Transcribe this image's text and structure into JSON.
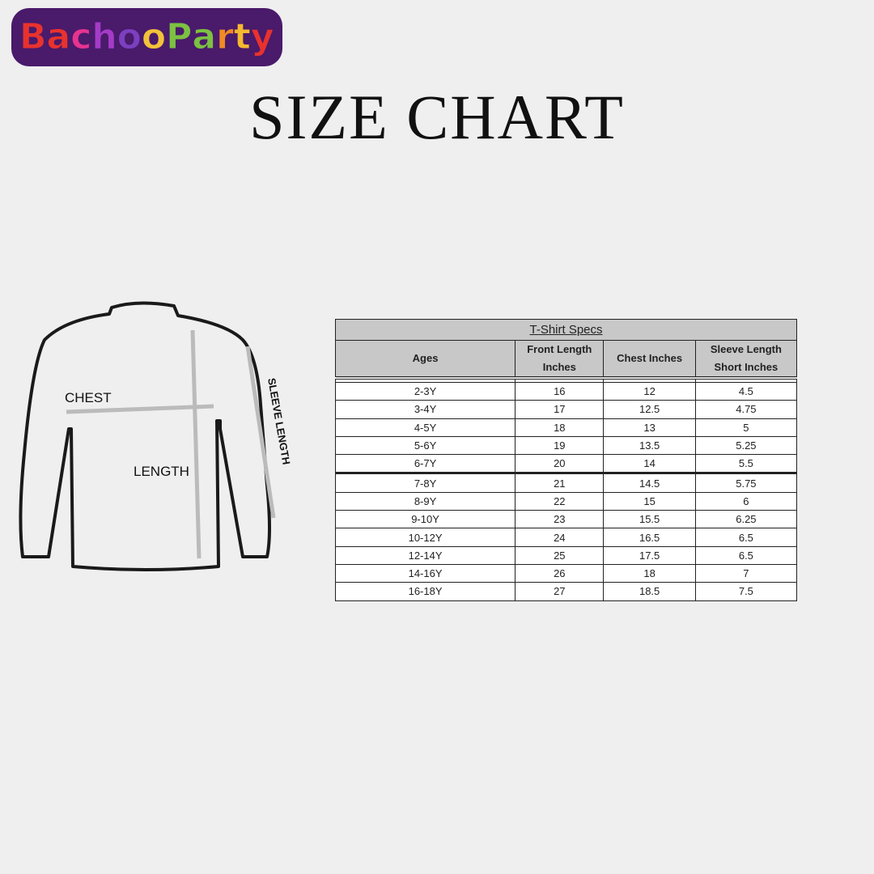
{
  "logo": {
    "text": "BachooParty",
    "letters": [
      {
        "c": "B",
        "color": "#e8322d"
      },
      {
        "c": "a",
        "color": "#e8322d"
      },
      {
        "c": "c",
        "color": "#e6338f"
      },
      {
        "c": "h",
        "color": "#a43bc8"
      },
      {
        "c": "o",
        "color": "#7b3fc0"
      },
      {
        "c": "o",
        "color": "#f2c23a"
      },
      {
        "c": "P",
        "color": "#7cc142"
      },
      {
        "c": "a",
        "color": "#7cc142"
      },
      {
        "c": "r",
        "color": "#f08a24"
      },
      {
        "c": "t",
        "color": "#f5b82e"
      },
      {
        "c": "y",
        "color": "#e8322d"
      }
    ]
  },
  "title": "SIZE CHART",
  "diagram": {
    "chest": "CHEST",
    "length": "LENGTH",
    "sleeve": "SLEEVE LENGTH"
  },
  "table": {
    "caption": "T-Shirt Specs",
    "headers": [
      [
        "Ages"
      ],
      [
        "Front Length",
        "Inches"
      ],
      [
        "Chest Inches"
      ],
      [
        "Sleeve Length",
        "Short Inches"
      ]
    ],
    "rows": [
      [
        "2-3Y",
        "16",
        "12",
        "4.5"
      ],
      [
        "3-4Y",
        "17",
        "12.5",
        "4.75"
      ],
      [
        "4-5Y",
        "18",
        "13",
        "5"
      ],
      [
        "5-6Y",
        "19",
        "13.5",
        "5.25"
      ],
      [
        "6-7Y",
        "20",
        "14",
        "5.5"
      ],
      [
        "7-8Y",
        "21",
        "14.5",
        "5.75"
      ],
      [
        "8-9Y",
        "22",
        "15",
        "6"
      ],
      [
        "9-10Y",
        "23",
        "15.5",
        "6.25"
      ],
      [
        "10-12Y",
        "24",
        "16.5",
        "6.5"
      ],
      [
        "12-14Y",
        "25",
        "17.5",
        "6.5"
      ],
      [
        "14-16Y",
        "26",
        "18",
        "7"
      ],
      [
        "16-18Y",
        "27",
        "18.5",
        "7.5"
      ]
    ]
  }
}
